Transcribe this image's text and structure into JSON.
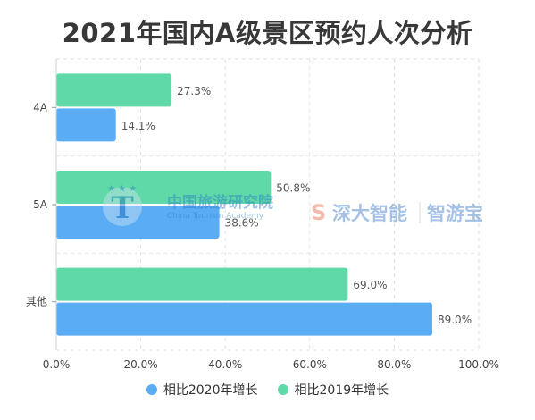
{
  "chart_data": {
    "type": "bar",
    "orientation": "horizontal",
    "title": "2021年国内A级景区预约人次分析",
    "categories": [
      "4A",
      "5A",
      "其他"
    ],
    "series": [
      {
        "name": "相比2019年增长",
        "color": "#5fd9a8",
        "values": [
          27.3,
          50.8,
          69.0
        ],
        "labels": [
          "27.3%",
          "50.8%",
          "69.0%"
        ]
      },
      {
        "name": "相比2020年增长",
        "color": "#5aadf4",
        "values": [
          14.1,
          38.6,
          89.0
        ],
        "labels": [
          "14.1%",
          "38.6%",
          "89.0%"
        ]
      }
    ],
    "xlim": [
      0,
      100
    ],
    "xticks": [
      "0.0%",
      "20.0%",
      "40.0%",
      "60.0%",
      "80.0%",
      "100.0%"
    ],
    "grid": "vertical dashed",
    "legend_position": "bottom"
  },
  "legend_order": [
    "相比2020年增长",
    "相比2019年增长"
  ],
  "watermarks": {
    "academy_cn": "中国旅游研究院",
    "academy_en": "China Tourism Academy",
    "brand1": "深大智能",
    "brand2": "智游宝"
  }
}
